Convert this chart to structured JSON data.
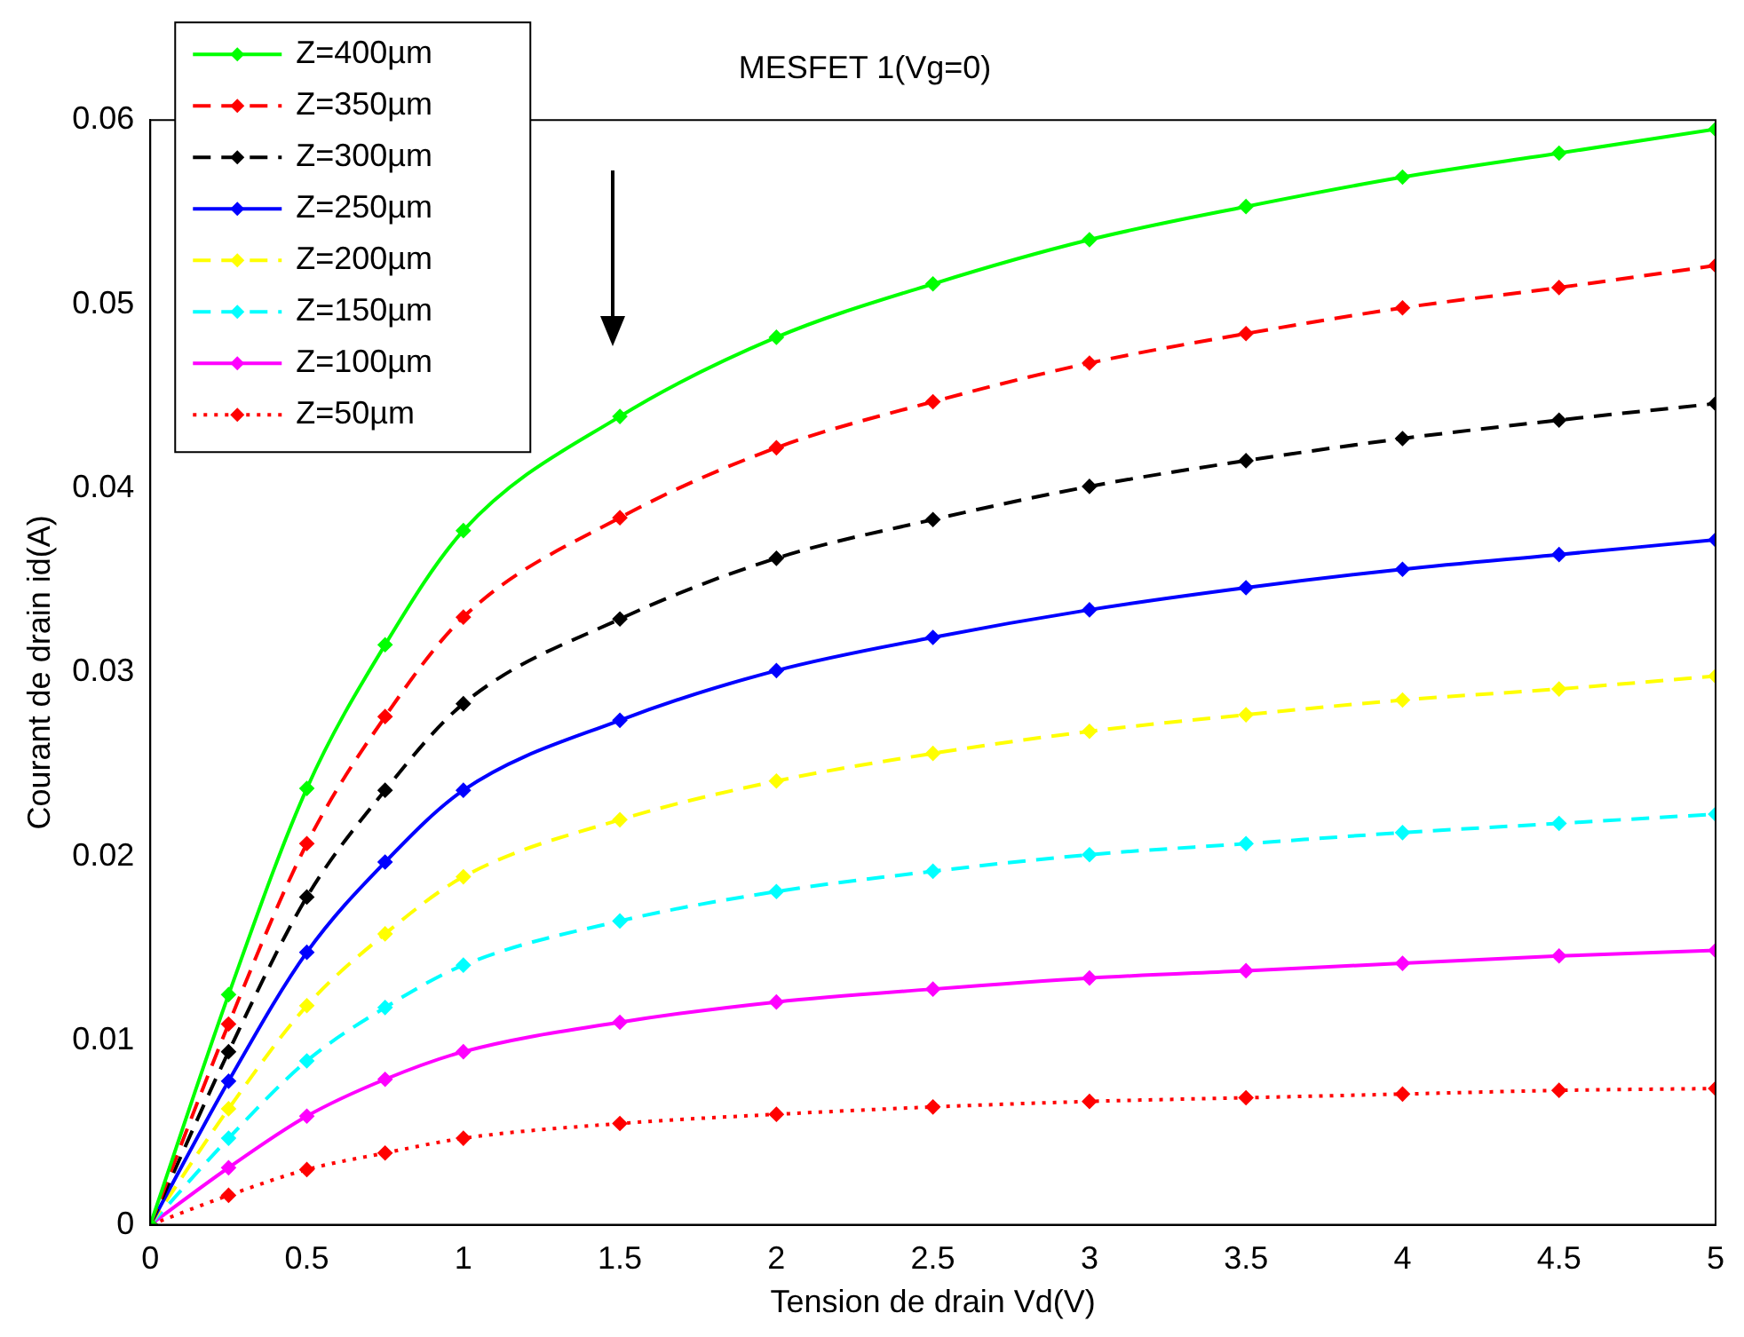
{
  "chart_data": {
    "type": "line",
    "title": "MESFET 1(Vg=0)",
    "xlabel": "Tension de drain Vd(V)",
    "ylabel": "Courant de drain id(A)",
    "x": [
      0,
      0.25,
      0.5,
      0.75,
      1,
      1.5,
      2,
      2.5,
      3,
      3.5,
      4,
      4.5,
      5
    ],
    "xlim": [
      0,
      5
    ],
    "xticks": [
      0,
      0.5,
      1,
      1.5,
      2,
      2.5,
      3,
      3.5,
      4,
      4.5,
      5
    ],
    "ylim": [
      0,
      0.06
    ],
    "yticks": [
      0,
      0.01,
      0.02,
      0.03,
      0.04,
      0.05,
      0.06
    ],
    "grid": false,
    "legend": "top left",
    "marker": "diamond",
    "series": [
      {
        "name": "Z=400µm",
        "color": "#00ff00",
        "line_style": "solid",
        "values": [
          0,
          0.0125,
          0.0237,
          0.0315,
          0.0377,
          0.0439,
          0.0482,
          0.0511,
          0.0535,
          0.0553,
          0.0569,
          0.0582,
          0.0595
        ]
      },
      {
        "name": "Z=350µm",
        "color": "#ff0000",
        "line_style": "dashed",
        "values": [
          0,
          0.0109,
          0.0207,
          0.0276,
          0.033,
          0.0384,
          0.0422,
          0.0447,
          0.0468,
          0.0484,
          0.0498,
          0.0509,
          0.0521
        ]
      },
      {
        "name": "Z=300µm",
        "color": "#000000",
        "line_style": "dashed",
        "values": [
          0,
          0.0094,
          0.0178,
          0.0236,
          0.0283,
          0.0329,
          0.0362,
          0.0383,
          0.0401,
          0.0415,
          0.0427,
          0.0437,
          0.0446
        ]
      },
      {
        "name": "Z=250µm",
        "color": "#0000ff",
        "line_style": "solid",
        "values": [
          0,
          0.0078,
          0.0148,
          0.0197,
          0.0236,
          0.0274,
          0.0301,
          0.0319,
          0.0334,
          0.0346,
          0.0356,
          0.0364,
          0.0372
        ]
      },
      {
        "name": "Z=200µm",
        "color": "#ffff00",
        "line_style": "dashed",
        "values": [
          0,
          0.0063,
          0.0119,
          0.0158,
          0.0189,
          0.022,
          0.0241,
          0.0256,
          0.0268,
          0.0277,
          0.0285,
          0.0291,
          0.0298
        ]
      },
      {
        "name": "Z=150µm",
        "color": "#00ffff",
        "line_style": "dashed",
        "values": [
          0,
          0.0047,
          0.0089,
          0.0118,
          0.0141,
          0.0165,
          0.0181,
          0.0192,
          0.0201,
          0.0207,
          0.0213,
          0.0218,
          0.0223
        ]
      },
      {
        "name": "Z=100µm",
        "color": "#ff00ff",
        "line_style": "solid",
        "values": [
          0,
          0.0031,
          0.0059,
          0.0079,
          0.0094,
          0.011,
          0.0121,
          0.0128,
          0.0134,
          0.0138,
          0.0142,
          0.0146,
          0.0149
        ]
      },
      {
        "name": "Z=50µm",
        "color": "#ff0000",
        "line_style": "dotted",
        "values": [
          0,
          0.0016,
          0.003,
          0.0039,
          0.0047,
          0.0055,
          0.006,
          0.0064,
          0.0067,
          0.0069,
          0.0071,
          0.0073,
          0.0074
        ]
      }
    ]
  }
}
